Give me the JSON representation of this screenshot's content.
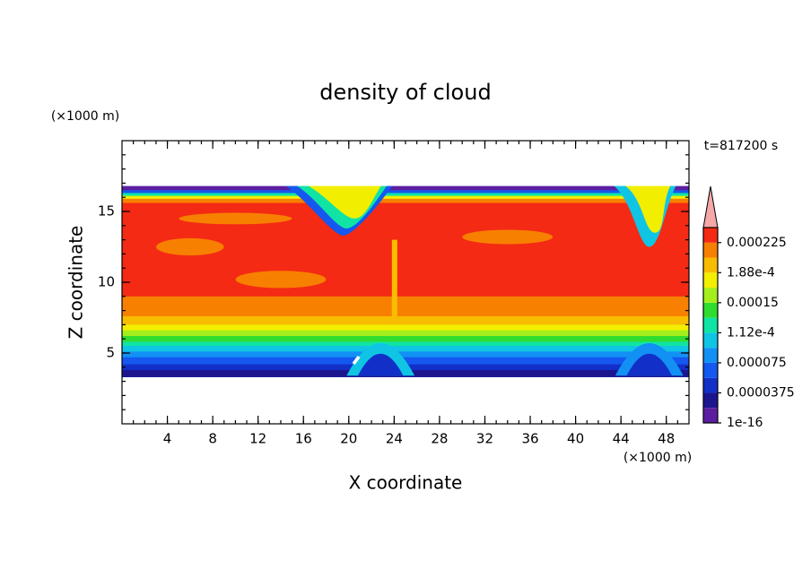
{
  "chart_data": {
    "type": "contour",
    "title": "density of cloud",
    "xlabel": "X coordinate",
    "ylabel": "Z coordinate",
    "xunit": "(×1000 m)",
    "yunit": "(×1000 m)",
    "annotation": "t=817200 s",
    "xlim": [
      0,
      50
    ],
    "xticks": [
      4,
      8,
      12,
      16,
      20,
      24,
      28,
      32,
      36,
      40,
      44,
      48
    ],
    "ylim": [
      0,
      20
    ],
    "yticks": [
      5,
      10,
      15
    ],
    "colorbar": {
      "lim": [
        1e-16,
        0.00024375
      ],
      "ticks": [
        1e-16,
        3.75e-05,
        7.5e-05,
        {
          "value": 0.0001125,
          "label": "1.12e-4"
        },
        0.00015,
        {
          "value": 0.0001875,
          "label": "1.88e-4"
        },
        0.000225
      ],
      "colors": [
        "#5c1ea0",
        "#1c168e",
        "#1230c8",
        "#1458f0",
        "#1290f4",
        "#10c4e4",
        "#10e4a4",
        "#30dc30",
        "#a4ee1c",
        "#f2ee00",
        "#f8bc00",
        "#f88000",
        "#f42a14"
      ],
      "extend_color": "#f4a8a8"
    }
  }
}
